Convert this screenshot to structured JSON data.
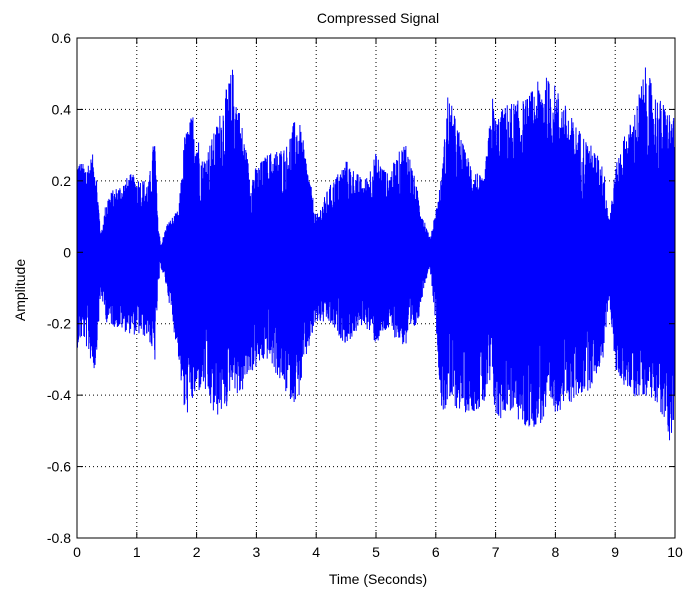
{
  "chart_data": {
    "type": "line",
    "title": "Compressed Signal",
    "xlabel": "Time (Seconds)",
    "ylabel": "Amplitude",
    "xlim": [
      0,
      10
    ],
    "ylim": [
      -0.8,
      0.6
    ],
    "xticks": [
      0,
      1,
      2,
      3,
      4,
      5,
      6,
      7,
      8,
      9,
      10
    ],
    "xtick_labels": [
      "0",
      "1",
      "2",
      "3",
      "4",
      "5",
      "6",
      "7",
      "8",
      "9",
      "10"
    ],
    "yticks": [
      -0.8,
      -0.6,
      -0.4,
      -0.2,
      0,
      0.2,
      0.4,
      0.6
    ],
    "ytick_labels": [
      "-0.8",
      "-0.6",
      "-0.4",
      "-0.2",
      "0",
      "0.2",
      "0.4",
      "0.6"
    ],
    "grid": true,
    "grid_style": "dotted",
    "line_color": "#0000ff",
    "series": [
      {
        "time": [
          0.0,
          0.1,
          0.3,
          0.4,
          0.5,
          0.9,
          1.2,
          1.3,
          1.35,
          1.4,
          1.5,
          1.7,
          1.8,
          1.95,
          2.1,
          2.3,
          2.5,
          2.6,
          2.7,
          2.9,
          3.2,
          3.5,
          3.6,
          3.7,
          3.8,
          4.0,
          4.2,
          4.5,
          4.8,
          5.0,
          5.2,
          5.5,
          5.7,
          5.8,
          5.9,
          6.0,
          6.1,
          6.2,
          6.5,
          6.8,
          6.95,
          7.0,
          7.2,
          7.5,
          7.8,
          8.0,
          8.3,
          8.6,
          8.8,
          8.9,
          9.0,
          9.1,
          9.3,
          9.5,
          9.7,
          9.9,
          10.0
        ],
        "upper_envelope": [
          0.27,
          0.25,
          0.28,
          0.05,
          0.16,
          0.22,
          0.2,
          0.34,
          0.1,
          0.02,
          0.08,
          0.12,
          0.33,
          0.4,
          0.26,
          0.34,
          0.46,
          0.52,
          0.42,
          0.22,
          0.28,
          0.3,
          0.36,
          0.38,
          0.3,
          0.1,
          0.18,
          0.26,
          0.2,
          0.28,
          0.22,
          0.32,
          0.17,
          0.1,
          0.04,
          0.12,
          0.22,
          0.45,
          0.28,
          0.2,
          0.44,
          0.38,
          0.42,
          0.43,
          0.5,
          0.47,
          0.37,
          0.3,
          0.25,
          0.1,
          0.23,
          0.31,
          0.38,
          0.52,
          0.44,
          0.4,
          0.37
        ],
        "lower_envelope": [
          -0.27,
          -0.24,
          -0.34,
          -0.12,
          -0.2,
          -0.23,
          -0.24,
          -0.32,
          -0.12,
          -0.04,
          -0.1,
          -0.3,
          -0.47,
          -0.42,
          -0.38,
          -0.47,
          -0.44,
          -0.36,
          -0.42,
          -0.34,
          -0.3,
          -0.4,
          -0.42,
          -0.42,
          -0.32,
          -0.2,
          -0.2,
          -0.26,
          -0.2,
          -0.26,
          -0.22,
          -0.27,
          -0.2,
          -0.1,
          -0.04,
          -0.2,
          -0.46,
          -0.43,
          -0.45,
          -0.44,
          -0.37,
          -0.49,
          -0.44,
          -0.5,
          -0.48,
          -0.45,
          -0.42,
          -0.38,
          -0.3,
          -0.12,
          -0.34,
          -0.36,
          -0.41,
          -0.4,
          -0.42,
          -0.53,
          -0.5
        ]
      }
    ]
  }
}
